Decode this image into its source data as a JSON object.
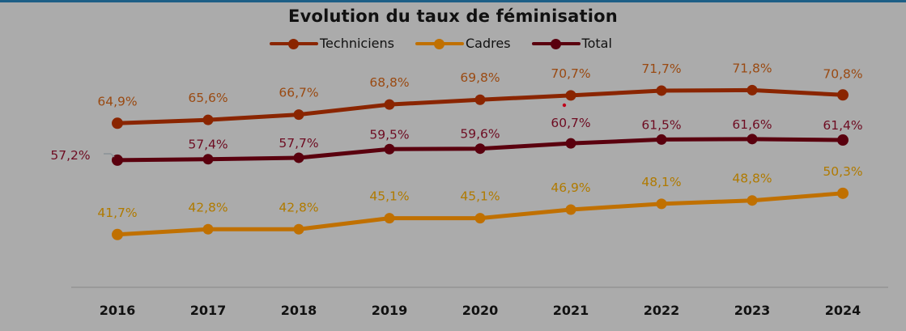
{
  "chart_data": {
    "type": "line",
    "title": "Evolution du taux de féminisation",
    "xlabel": "",
    "ylabel": "",
    "x": [
      "2016",
      "2017",
      "2018",
      "2019",
      "2020",
      "2021",
      "2022",
      "2023",
      "2024"
    ],
    "ylim": [
      30.7,
      75
    ],
    "grid": false,
    "legend_position": "top-center",
    "series": [
      {
        "name": "Techniciens",
        "color": "#8a2500",
        "label_color": "#9a4a12",
        "values": [
          64.9,
          65.6,
          66.7,
          68.8,
          69.8,
          70.7,
          71.7,
          71.8,
          70.8
        ],
        "labels": [
          "64,9%",
          "65,6%",
          "66,7%",
          "68,8%",
          "69,8%",
          "70,7%",
          "71,7%",
          "71,8%",
          "70,8%"
        ]
      },
      {
        "name": "Cadres",
        "color": "#c07000",
        "label_color": "#b07a00",
        "values": [
          41.7,
          42.8,
          42.8,
          45.1,
          45.1,
          46.9,
          48.1,
          48.8,
          50.3
        ],
        "labels": [
          "41,7%",
          "42,8%",
          "42,8%",
          "45,1%",
          "45,1%",
          "46,9%",
          "48,1%",
          "48,8%",
          "50,3%"
        ]
      },
      {
        "name": "Total",
        "color": "#5a000e",
        "label_color": "#6e0c22",
        "values": [
          57.2,
          57.4,
          57.7,
          59.5,
          59.6,
          60.7,
          61.5,
          61.6,
          61.4
        ],
        "labels": [
          "57,2%",
          "57,4%",
          "57,7%",
          "59,5%",
          "59,6%",
          "60,7%",
          "61,5%",
          "61,6%",
          "61,4%"
        ]
      }
    ]
  },
  "page": {
    "title": "Evolution du taux de féminisation",
    "legend": [
      {
        "label": "Techniciens",
        "color": "#8a2500"
      },
      {
        "label": "Cadres",
        "color": "#c07000"
      },
      {
        "label": "Total",
        "color": "#5a000e"
      }
    ]
  }
}
